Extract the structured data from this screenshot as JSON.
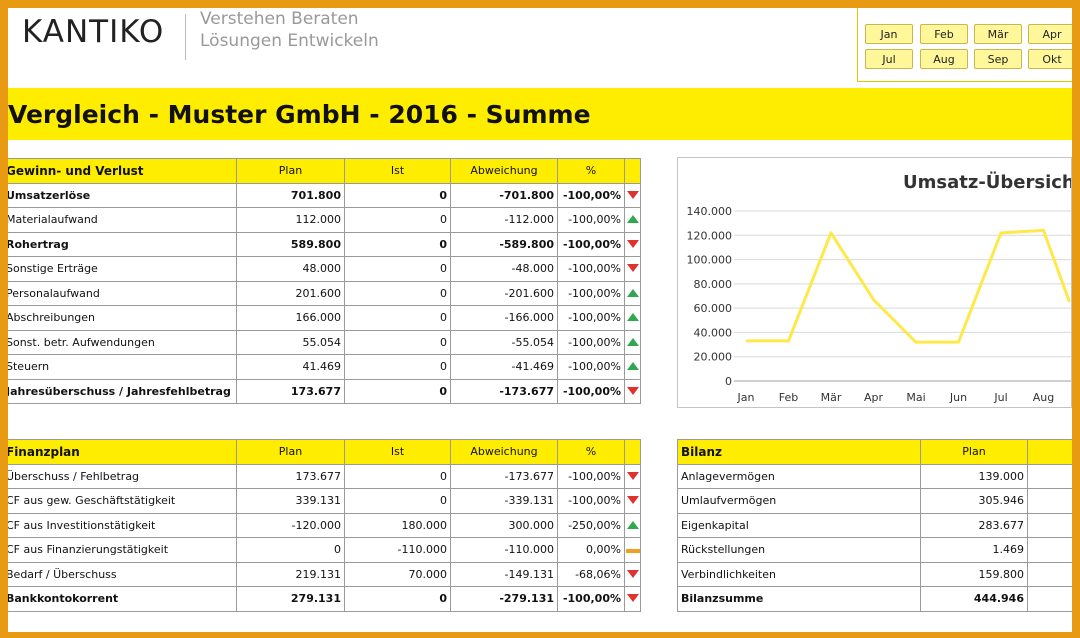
{
  "header": {
    "logo": "KANTIKO",
    "tagline_line1": "Verstehen Beraten",
    "tagline_line2": "Lösungen Entwickeln"
  },
  "months": [
    "Jan",
    "Feb",
    "Mär",
    "Apr",
    "Jul",
    "Aug",
    "Sep",
    "Okt"
  ],
  "title": "Vergleich - Muster GmbH - 2016 - Summe",
  "guv": {
    "headers": [
      "Gewinn- und Verlust",
      "Plan",
      "Ist",
      "Abweichung",
      "%"
    ],
    "rows": [
      {
        "label": "Umsatzerlöse",
        "plan": "701.800",
        "ist": "0",
        "abw": "-701.800",
        "pct": "-100,00%",
        "bold": true,
        "icon": "down"
      },
      {
        "label": "Materialaufwand",
        "plan": "112.000",
        "ist": "0",
        "abw": "-112.000",
        "pct": "-100,00%",
        "bold": false,
        "icon": "up"
      },
      {
        "label": "Rohertrag",
        "plan": "589.800",
        "ist": "0",
        "abw": "-589.800",
        "pct": "-100,00%",
        "bold": true,
        "icon": "down"
      },
      {
        "label": "Sonstige Erträge",
        "plan": "48.000",
        "ist": "0",
        "abw": "-48.000",
        "pct": "-100,00%",
        "bold": false,
        "icon": "down"
      },
      {
        "label": "Personalaufwand",
        "plan": "201.600",
        "ist": "0",
        "abw": "-201.600",
        "pct": "-100,00%",
        "bold": false,
        "icon": "up"
      },
      {
        "label": "Abschreibungen",
        "plan": "166.000",
        "ist": "0",
        "abw": "-166.000",
        "pct": "-100,00%",
        "bold": false,
        "icon": "up"
      },
      {
        "label": "Sonst. betr. Aufwendungen",
        "plan": "55.054",
        "ist": "0",
        "abw": "-55.054",
        "pct": "-100,00%",
        "bold": false,
        "icon": "up"
      },
      {
        "label": "Steuern",
        "plan": "41.469",
        "ist": "0",
        "abw": "-41.469",
        "pct": "-100,00%",
        "bold": false,
        "icon": "up"
      },
      {
        "label": "Jahresüberschuss / Jahresfehlbetrag",
        "plan": "173.677",
        "ist": "0",
        "abw": "-173.677",
        "pct": "-100,00%",
        "bold": true,
        "icon": "down"
      }
    ]
  },
  "finanzplan": {
    "headers": [
      "Finanzplan",
      "Plan",
      "Ist",
      "Abweichung",
      "%"
    ],
    "rows": [
      {
        "label": "Überschuss / Fehlbetrag",
        "plan": "173.677",
        "ist": "0",
        "abw": "-173.677",
        "pct": "-100,00%",
        "bold": false,
        "icon": "down"
      },
      {
        "label": "CF aus gew. Geschäftstätigkeit",
        "plan": "339.131",
        "ist": "0",
        "abw": "-339.131",
        "pct": "-100,00%",
        "bold": false,
        "icon": "down"
      },
      {
        "label": "CF aus Investitionstätigkeit",
        "plan": "-120.000",
        "ist": "180.000",
        "abw": "300.000",
        "pct": "-250,00%",
        "bold": false,
        "icon": "up"
      },
      {
        "label": "CF aus Finanzierungstätigkeit",
        "plan": "0",
        "ist": "-110.000",
        "abw": "-110.000",
        "pct": "0,00%",
        "bold": false,
        "icon": "flat"
      },
      {
        "label": "Bedarf / Überschuss",
        "plan": "219.131",
        "ist": "70.000",
        "abw": "-149.131",
        "pct": "-68,06%",
        "bold": false,
        "icon": "down"
      },
      {
        "label": "Bankkontokorrent",
        "plan": "279.131",
        "ist": "0",
        "abw": "-279.131",
        "pct": "-100,00%",
        "bold": true,
        "icon": "down"
      }
    ]
  },
  "bilanz": {
    "headers": [
      "Bilanz",
      "Plan"
    ],
    "rows": [
      {
        "label": "Anlagevermögen",
        "plan": "139.000",
        "bold": false
      },
      {
        "label": "Umlaufvermögen",
        "plan": "305.946",
        "bold": false
      },
      {
        "label": "Eigenkapital",
        "plan": "283.677",
        "bold": false
      },
      {
        "label": "Rückstellungen",
        "plan": "1.469",
        "bold": false
      },
      {
        "label": "Verbindlichkeiten",
        "plan": "159.800",
        "bold": false
      },
      {
        "label": "Bilanzsumme",
        "plan": "444.946",
        "bold": true
      }
    ]
  },
  "colors": {
    "accent": "#ffed00",
    "frame": "#e89a12",
    "line": "#ffe84a",
    "down": "#e03030",
    "up": "#2fa84f"
  },
  "chart_data": {
    "type": "line",
    "title": "Umsatz-Übersich",
    "categories": [
      "Jan",
      "Feb",
      "Mär",
      "Apr",
      "Mai",
      "Jun",
      "Jul",
      "Aug"
    ],
    "values": [
      33000,
      33000,
      122000,
      67000,
      32000,
      32000,
      122000,
      124000
    ],
    "yticks": [
      "0",
      "20.000",
      "40.000",
      "60.000",
      "80.000",
      "100.000",
      "120.000",
      "140.000"
    ],
    "ylim": [
      0,
      140000
    ],
    "grid": true
  }
}
